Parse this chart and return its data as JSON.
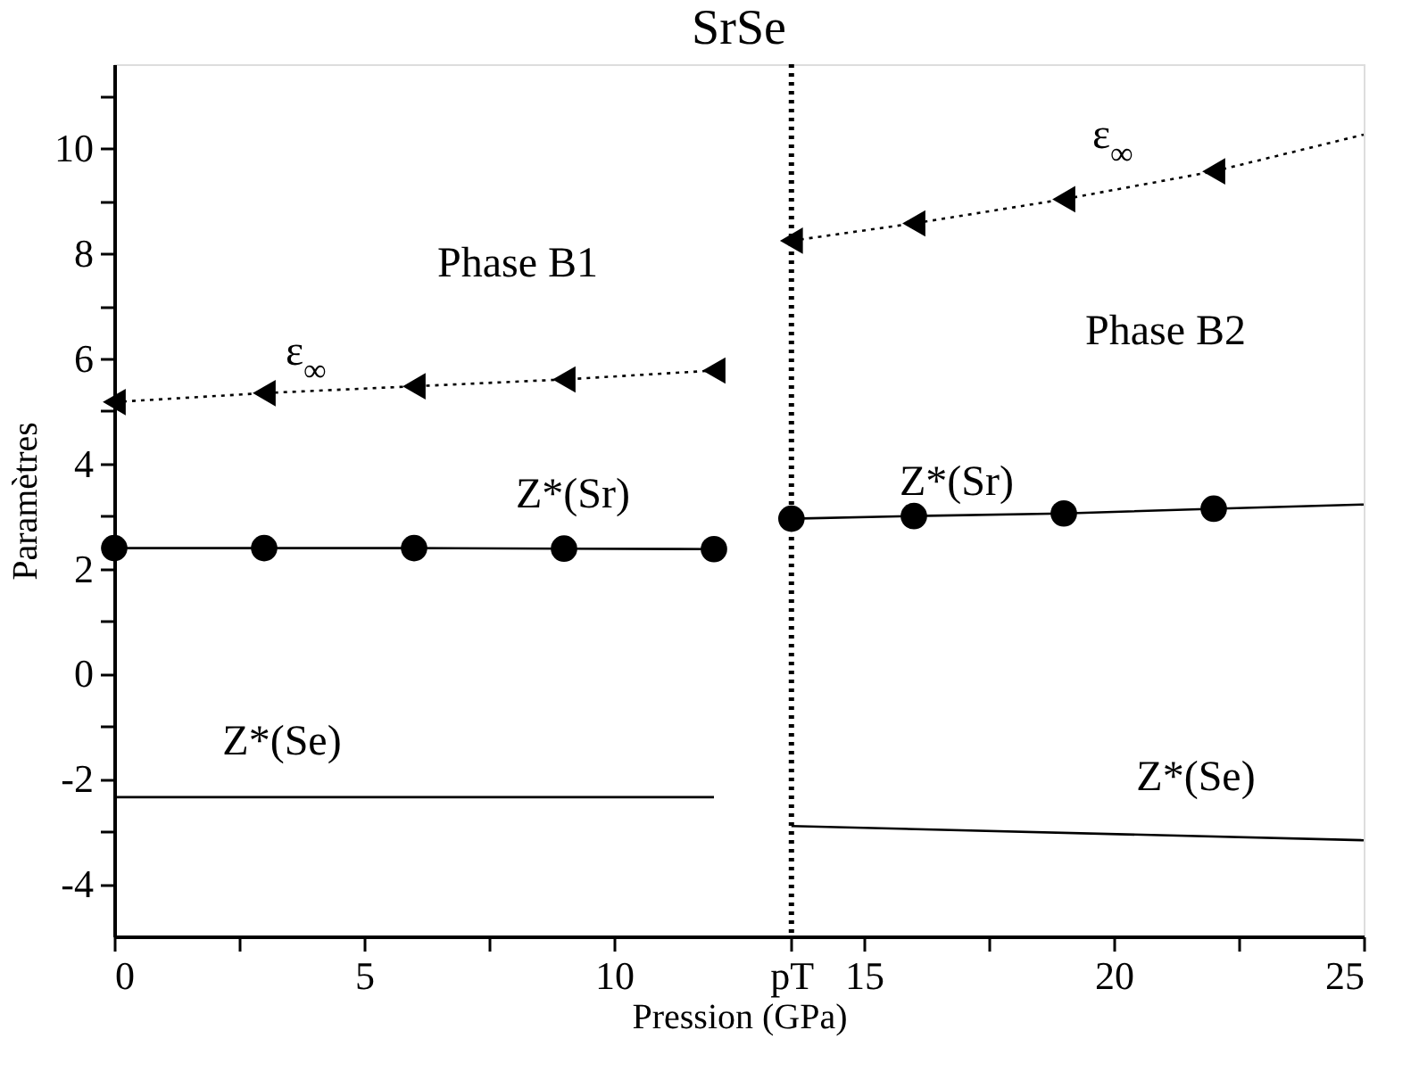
{
  "chart_data": {
    "type": "line",
    "title": "SrSe",
    "xlabel": "Pression (GPa)",
    "ylabel": "Paramètres",
    "xlim": [
      0,
      25
    ],
    "ylim": [
      -5,
      11.6
    ],
    "xticks": [
      0,
      {
        "value": 2.5,
        "label": null
      },
      5,
      {
        "value": 7.5,
        "label": null
      },
      10,
      {
        "value": 13.55,
        "label": "pT"
      },
      15,
      {
        "value": 17.5,
        "label": null
      },
      20,
      {
        "value": 22.5,
        "label": null
      },
      25
    ],
    "yticks": [
      -4,
      {
        "value": -3,
        "label": null
      },
      -2,
      {
        "value": -1,
        "label": null
      },
      0,
      {
        "value": 1,
        "label": null
      },
      2,
      {
        "value": 3,
        "label": null
      },
      4,
      {
        "value": 5,
        "label": null
      },
      6,
      {
        "value": 7,
        "label": null
      },
      8,
      {
        "value": 9,
        "label": null
      },
      10,
      {
        "value": 11,
        "label": null
      }
    ],
    "grid": false,
    "series": [
      {
        "name": "ε$_{∞}$",
        "color": "#000000",
        "marker": "triangle",
        "line_style": "dotted",
        "x": [
          0,
          3,
          6,
          9,
          12
        ],
        "values": [
          5.17,
          5.34,
          5.47,
          5.6,
          5.77
        ]
      },
      {
        "name": "Z*(Sr)",
        "color": "#000000",
        "marker": "circle",
        "line_style": "solid",
        "x": [
          0,
          3,
          6,
          9,
          12
        ],
        "values": [
          2.39,
          2.39,
          2.39,
          2.38,
          2.37
        ]
      },
      {
        "name": "Z*(Se)",
        "color": "#000000",
        "marker": "none",
        "line_style": "solid",
        "x": [
          0,
          12
        ],
        "values": [
          -2.35,
          -2.35
        ]
      },
      {
        "name": "ε$_{∞}$",
        "color": "#000000",
        "marker": "none",
        "line_style": "dotted",
        "x": [
          13.55,
          16,
          19,
          22,
          25
        ],
        "values": [
          8.24,
          8.57,
          9.03,
          9.56,
          10.26
        ]
      },
      {
        "type": "scatter",
        "color": "#000000",
        "marker": "triangle",
        "x": [
          13.55,
          16,
          19,
          22
        ],
        "values": [
          8.24,
          8.57,
          9.03,
          9.56
        ]
      },
      {
        "name": "Z*(Sr)",
        "color": "#000000",
        "marker": "none",
        "line_style": "solid",
        "x": [
          13.55,
          16,
          19,
          22,
          25
        ],
        "values": [
          2.95,
          3.0,
          3.05,
          3.14,
          3.22
        ]
      },
      {
        "type": "scatter",
        "color": "#000000",
        "marker": "circle",
        "x": [
          13.55,
          16,
          19,
          22
        ],
        "values": [
          2.95,
          3.0,
          3.05,
          3.14
        ]
      },
      {
        "name": "Z*(Se)",
        "color": "#000000",
        "marker": "none",
        "line_style": "solid",
        "x": [
          13.55,
          25
        ],
        "values": [
          -2.9,
          -3.17
        ]
      }
    ],
    "ref_lines": [
      {
        "axis": "x",
        "value": 13.55,
        "label": null,
        "color": "#000000",
        "line_style": "dotted"
      }
    ],
    "annotations": [
      "Phase B1",
      "Phase B2"
    ]
  }
}
